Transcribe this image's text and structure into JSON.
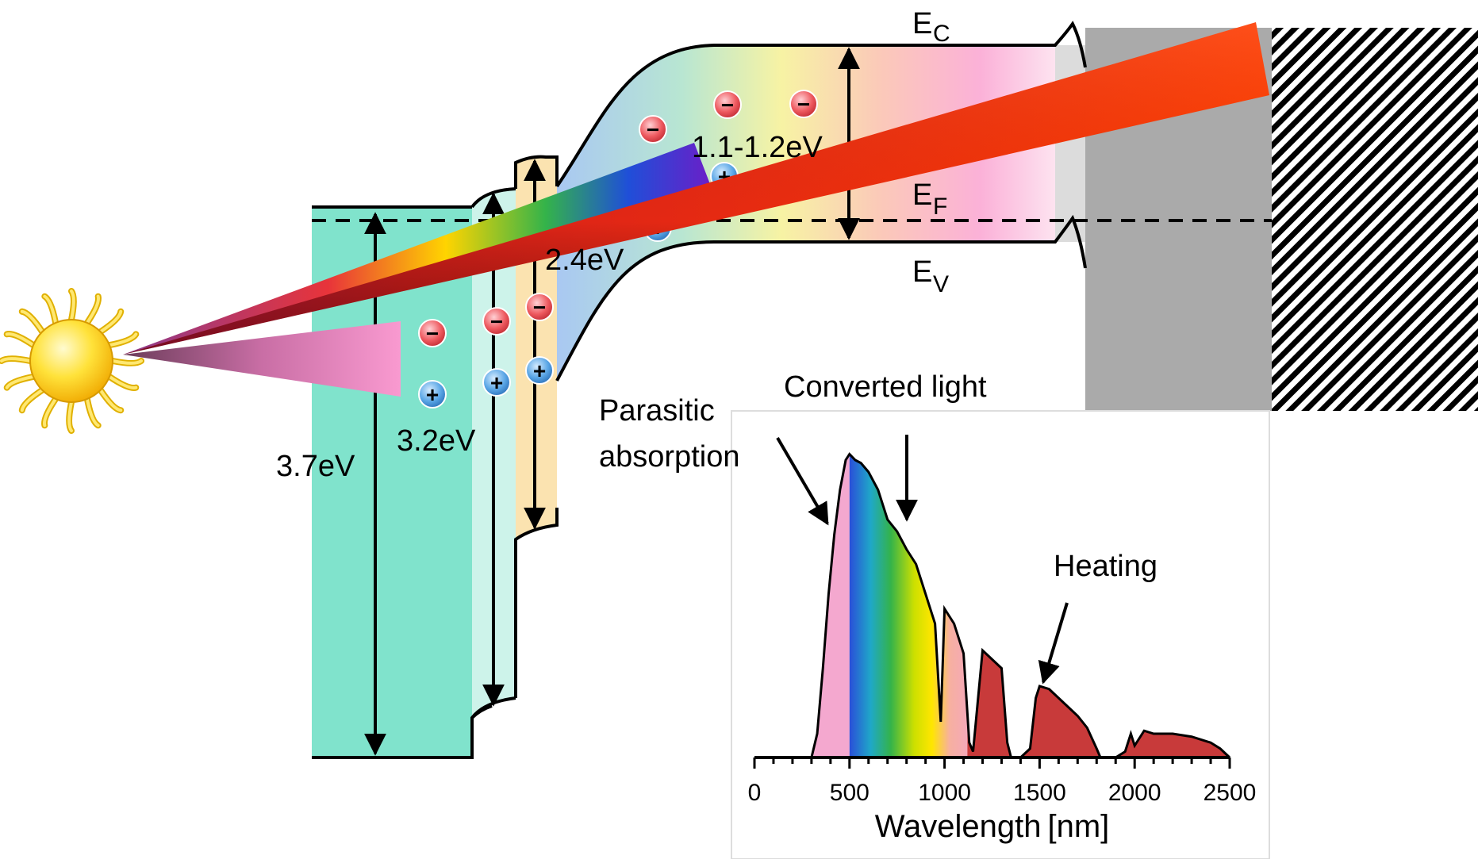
{
  "labels": {
    "ec_main": "E",
    "ec_sub": "C",
    "ef_main": "E",
    "ef_sub": "F",
    "ev_main": "E",
    "ev_sub": "V",
    "gap_37": "3.7eV",
    "gap_32": "3.2eV",
    "gap_24": "2.4eV",
    "gap_11": "1.1-1.2eV",
    "converted_light": "Converted light",
    "parasitic_line1": "Parasitic",
    "parasitic_line2": "absorption",
    "heating": "Heating"
  },
  "carriers": {
    "electron_symbol": "−",
    "hole_symbol": "+"
  },
  "colors": {
    "layer_wide": "#80e3cc",
    "layer_mid": "#cdf3ea",
    "layer_narrow": "#fbe3b0",
    "contact_gray": "#aaaaaa",
    "absorber_pink": "#f7a9d3",
    "beam_red": "#e83208",
    "beam_pink": "#f48cc4",
    "heating_red": "#c83a3a",
    "electron_red": "#e8434a",
    "hole_blue": "#3f8fd6",
    "sun_yellow": "#ffd400"
  },
  "icons": {
    "sun": "sun-icon"
  },
  "chart_data": {
    "type": "area",
    "title": "",
    "xlabel": "Wavelength [nm]",
    "ylabel": "",
    "xlim": [
      0,
      2500
    ],
    "x_ticks": [
      0,
      500,
      1000,
      1500,
      2000,
      2500
    ],
    "x_tick_labels": [
      "0",
      "500",
      "1000",
      "1500",
      "2000",
      "2500"
    ],
    "regions": [
      {
        "name": "Parasitic absorption",
        "from": 310,
        "to": 500
      },
      {
        "name": "Converted light",
        "from": 500,
        "to": 1120
      },
      {
        "name": "Heating",
        "from": 1120,
        "to": 2500
      }
    ],
    "spectrum": {
      "x": [
        300,
        330,
        360,
        390,
        420,
        450,
        480,
        500,
        530,
        560,
        600,
        650,
        700,
        750,
        800,
        850,
        900,
        950,
        980,
        1000,
        1050,
        1100,
        1130,
        1150,
        1200,
        1250,
        1300,
        1330,
        1350,
        1400,
        1450,
        1480,
        1500,
        1550,
        1600,
        1650,
        1700,
        1750,
        1800,
        1820,
        1850,
        1900,
        1950,
        1980,
        2000,
        2050,
        2100,
        2200,
        2300,
        2400,
        2450,
        2500
      ],
      "y": [
        0,
        0.08,
        0.3,
        0.55,
        0.75,
        0.9,
        1.0,
        1.02,
        1.0,
        0.99,
        0.96,
        0.9,
        0.8,
        0.76,
        0.7,
        0.65,
        0.55,
        0.45,
        0.12,
        0.5,
        0.45,
        0.35,
        0.05,
        0.02,
        0.36,
        0.33,
        0.3,
        0.05,
        0.0,
        0.0,
        0.03,
        0.2,
        0.24,
        0.23,
        0.2,
        0.17,
        0.14,
        0.1,
        0.03,
        0.0,
        0.0,
        0.0,
        0.02,
        0.08,
        0.04,
        0.09,
        0.08,
        0.08,
        0.07,
        0.05,
        0.03,
        0.0
      ]
    }
  }
}
